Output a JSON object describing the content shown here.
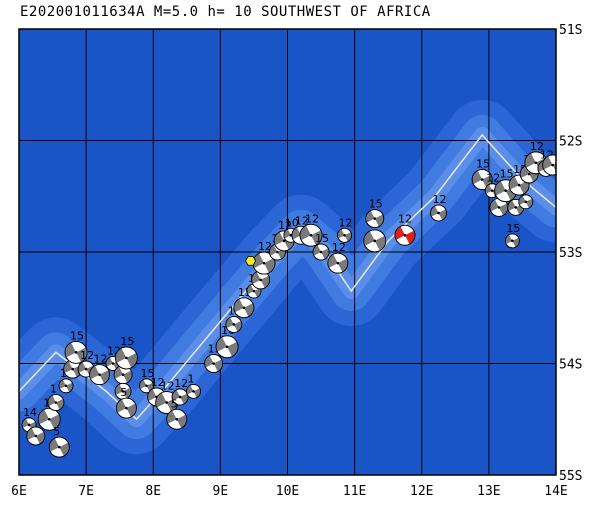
{
  "title": "E202001011634A M=5.0 h= 10 SOUTHWEST OF AFRICA",
  "axes": {
    "lon_labels": [
      "6E",
      "7E",
      "8E",
      "9E",
      "10E",
      "11E",
      "12E",
      "13E",
      "14E"
    ],
    "lat_labels": [
      "51S",
      "52S",
      "53S",
      "54S",
      "55S"
    ],
    "lon_range": [
      6,
      14
    ],
    "lat_range": [
      -51,
      -55
    ]
  },
  "colors": {
    "ocean": "#1a55c8",
    "ridge": "#3f7be0",
    "ridge_light": "#6a9af0",
    "grid": "#000000",
    "plate_boundary": "#dde6f5",
    "target_event": "#e0201a",
    "marker": "#ffee22"
  },
  "marker": {
    "lon": 9.45,
    "lat": -53.08,
    "shape": "hexagon"
  },
  "target_event": {
    "lon": 11.75,
    "lat": -52.85,
    "depth_label": "12"
  },
  "events": [
    {
      "lon": 6.15,
      "lat": -54.55,
      "label": "14"
    },
    {
      "lon": 6.25,
      "lat": -54.65,
      "label": ""
    },
    {
      "lon": 6.45,
      "lat": -54.5,
      "label": "1"
    },
    {
      "lon": 6.55,
      "lat": -54.35,
      "label": "1"
    },
    {
      "lon": 6.6,
      "lat": -54.75,
      "label": "5"
    },
    {
      "lon": 6.7,
      "lat": -54.2,
      "label": "12"
    },
    {
      "lon": 6.8,
      "lat": -54.05,
      "label": "12"
    },
    {
      "lon": 6.85,
      "lat": -53.9,
      "label": "15"
    },
    {
      "lon": 7.0,
      "lat": -54.05,
      "label": "12"
    },
    {
      "lon": 7.2,
      "lat": -54.1,
      "label": "12"
    },
    {
      "lon": 7.4,
      "lat": -54.0,
      "label": "12"
    },
    {
      "lon": 7.55,
      "lat": -54.1,
      "label": ""
    },
    {
      "lon": 7.6,
      "lat": -53.95,
      "label": "15"
    },
    {
      "lon": 7.55,
      "lat": -54.25,
      "label": ""
    },
    {
      "lon": 7.6,
      "lat": -54.4,
      "label": "5"
    },
    {
      "lon": 7.9,
      "lat": -54.2,
      "label": "15"
    },
    {
      "lon": 8.05,
      "lat": -54.3,
      "label": "12"
    },
    {
      "lon": 8.2,
      "lat": -54.35,
      "label": "12"
    },
    {
      "lon": 8.4,
      "lat": -54.3,
      "label": "12"
    },
    {
      "lon": 8.35,
      "lat": -54.5,
      "label": "5"
    },
    {
      "lon": 8.6,
      "lat": -54.25,
      "label": "1"
    },
    {
      "lon": 8.9,
      "lat": -54.0,
      "label": "15"
    },
    {
      "lon": 9.1,
      "lat": -53.85,
      "label": "16"
    },
    {
      "lon": 9.2,
      "lat": -53.65,
      "label": "12"
    },
    {
      "lon": 9.35,
      "lat": -53.5,
      "label": "15"
    },
    {
      "lon": 9.5,
      "lat": -53.35,
      "label": "15"
    },
    {
      "lon": 9.6,
      "lat": -53.25,
      "label": ""
    },
    {
      "lon": 9.65,
      "lat": -53.1,
      "label": "12"
    },
    {
      "lon": 9.85,
      "lat": -53.0,
      "label": "12"
    },
    {
      "lon": 9.95,
      "lat": -52.9,
      "label": "12"
    },
    {
      "lon": 10.05,
      "lat": -52.85,
      "label": "10"
    },
    {
      "lon": 10.2,
      "lat": -52.85,
      "label": "12"
    },
    {
      "lon": 10.35,
      "lat": -52.85,
      "label": "12"
    },
    {
      "lon": 10.5,
      "lat": -53.0,
      "label": "15"
    },
    {
      "lon": 10.75,
      "lat": -53.1,
      "label": "12"
    },
    {
      "lon": 10.85,
      "lat": -52.85,
      "label": "12"
    },
    {
      "lon": 11.3,
      "lat": -52.7,
      "label": "15"
    },
    {
      "lon": 11.3,
      "lat": -52.9,
      "label": ""
    },
    {
      "lon": 12.25,
      "lat": -52.65,
      "label": "12"
    },
    {
      "lon": 12.9,
      "lat": -52.35,
      "label": "15"
    },
    {
      "lon": 13.05,
      "lat": -52.45,
      "label": "12"
    },
    {
      "lon": 13.15,
      "lat": -52.6,
      "label": "15"
    },
    {
      "lon": 13.25,
      "lat": -52.45,
      "label": "15"
    },
    {
      "lon": 13.4,
      "lat": -52.6,
      "label": ""
    },
    {
      "lon": 13.45,
      "lat": -52.4,
      "label": "15"
    },
    {
      "lon": 13.55,
      "lat": -52.55,
      "label": ""
    },
    {
      "lon": 13.6,
      "lat": -52.3,
      "label": "15"
    },
    {
      "lon": 13.7,
      "lat": -52.2,
      "label": "12"
    },
    {
      "lon": 13.85,
      "lat": -52.25,
      "label": "12"
    },
    {
      "lon": 13.95,
      "lat": -52.22,
      "label": ""
    },
    {
      "lon": 13.35,
      "lat": -52.9,
      "label": "15"
    }
  ],
  "plate_boundary": [
    [
      6.0,
      -54.25
    ],
    [
      6.55,
      -53.9
    ],
    [
      7.3,
      -54.25
    ],
    [
      7.75,
      -54.5
    ],
    [
      8.2,
      -54.2
    ],
    [
      9.1,
      -53.55
    ],
    [
      9.8,
      -53.05
    ],
    [
      10.2,
      -52.8
    ],
    [
      10.5,
      -52.95
    ],
    [
      10.95,
      -53.35
    ],
    [
      11.5,
      -52.9
    ],
    [
      12.2,
      -52.5
    ],
    [
      12.9,
      -51.95
    ],
    [
      13.5,
      -52.35
    ],
    [
      14.0,
      -52.6
    ]
  ]
}
